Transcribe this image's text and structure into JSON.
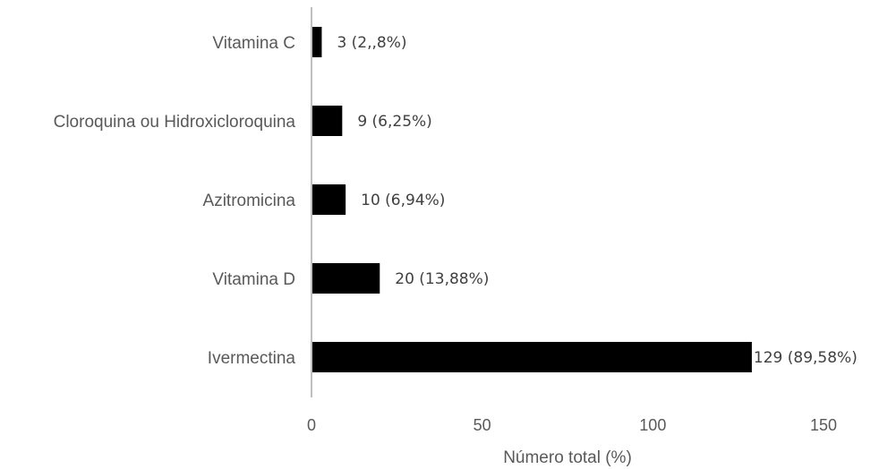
{
  "chart_data": {
    "type": "bar",
    "orientation": "horizontal",
    "categories": [
      "Vitamina C",
      "Cloroquina ou Hidroxicloroquina",
      "Azitromicina",
      "Vitamina D",
      "Ivermectina"
    ],
    "values": [
      3,
      9,
      10,
      20,
      129
    ],
    "data_labels": [
      "3 (2,,8%)",
      "9 (6,25%)",
      "10 (6,94%)",
      "20 (13,88%)",
      "129 (89,58%)"
    ],
    "title": "",
    "xlabel": "Número total (%)",
    "ylabel": "",
    "xlim": [
      0,
      150
    ],
    "xticks": [
      0,
      50,
      100,
      150
    ],
    "grid": false,
    "legend": "none",
    "bar_color": "#000000",
    "axis_color": "#bfbfbf"
  }
}
